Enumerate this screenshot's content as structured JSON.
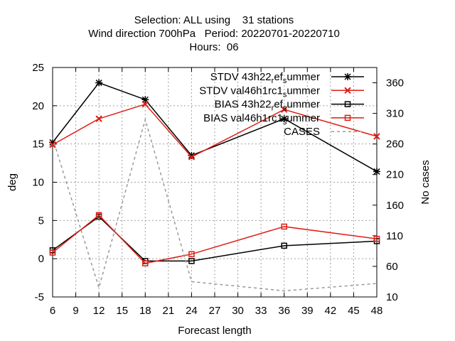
{
  "chart_data": {
    "type": "line",
    "title_lines": [
      "Selection: ALL using    31 stations",
      "Wind direction 700hPa   Period: 20220701-20220710",
      "Hours:  06"
    ],
    "xlabel": "Forecast length",
    "ylabel": "deg",
    "y2label": "No cases",
    "xlim": [
      6,
      48
    ],
    "ylim": [
      -5,
      25
    ],
    "y2lim": [
      10,
      385
    ],
    "xticks": [
      6,
      9,
      12,
      15,
      18,
      21,
      24,
      27,
      30,
      33,
      36,
      39,
      42,
      45,
      48
    ],
    "yticks": [
      -5,
      0,
      5,
      10,
      15,
      20,
      25
    ],
    "y2ticks": [
      10,
      60,
      110,
      160,
      210,
      260,
      310,
      360
    ],
    "grid": true,
    "legend_position": "top-right",
    "series": [
      {
        "name": "STDV 43h22_ref_summer",
        "legend_parts": [
          "STDV 43h22",
          "r",
          "ef",
          "s",
          "ummer"
        ],
        "color": "#000000",
        "marker": "star",
        "dash": "solid",
        "axis": "left",
        "x": [
          6,
          12,
          18,
          24,
          36,
          48
        ],
        "y": [
          15.2,
          23.0,
          20.8,
          13.5,
          18.3,
          11.4
        ]
      },
      {
        "name": "STDV val46h1rc1_summer",
        "legend_parts": [
          "STDV val46h1rc1",
          "s",
          "ummer"
        ],
        "color": "#dd1e14",
        "marker": "x",
        "dash": "solid",
        "axis": "left",
        "x": [
          6,
          12,
          18,
          24,
          36,
          48
        ],
        "y": [
          14.9,
          18.3,
          20.2,
          13.3,
          19.5,
          16.0
        ]
      },
      {
        "name": "BIAS 43h22_ref_summer",
        "legend_parts": [
          "BIAS 43h22",
          "r",
          "ef",
          "s",
          "ummer"
        ],
        "color": "#000000",
        "marker": "square",
        "dash": "solid",
        "axis": "left",
        "x": [
          6,
          12,
          18,
          24,
          36,
          48
        ],
        "y": [
          1.1,
          5.5,
          -0.3,
          -0.3,
          1.7,
          2.3
        ]
      },
      {
        "name": "BIAS val46h1rc1_summer",
        "legend_parts": [
          "BIAS val46h1rc1",
          "s",
          "ummer"
        ],
        "color": "#dd1e14",
        "marker": "square",
        "dash": "solid",
        "axis": "left",
        "x": [
          6,
          12,
          18,
          24,
          36,
          48
        ],
        "y": [
          0.8,
          5.7,
          -0.6,
          0.6,
          4.2,
          2.6
        ]
      },
      {
        "name": "CASES",
        "legend_parts": [
          "CASES"
        ],
        "color": "#999999",
        "marker": "none",
        "dash": "dashed",
        "axis": "right",
        "x": [
          6,
          12,
          18,
          24,
          36,
          48
        ],
        "y": [
          270,
          25,
          300,
          35,
          20,
          32
        ]
      }
    ]
  }
}
